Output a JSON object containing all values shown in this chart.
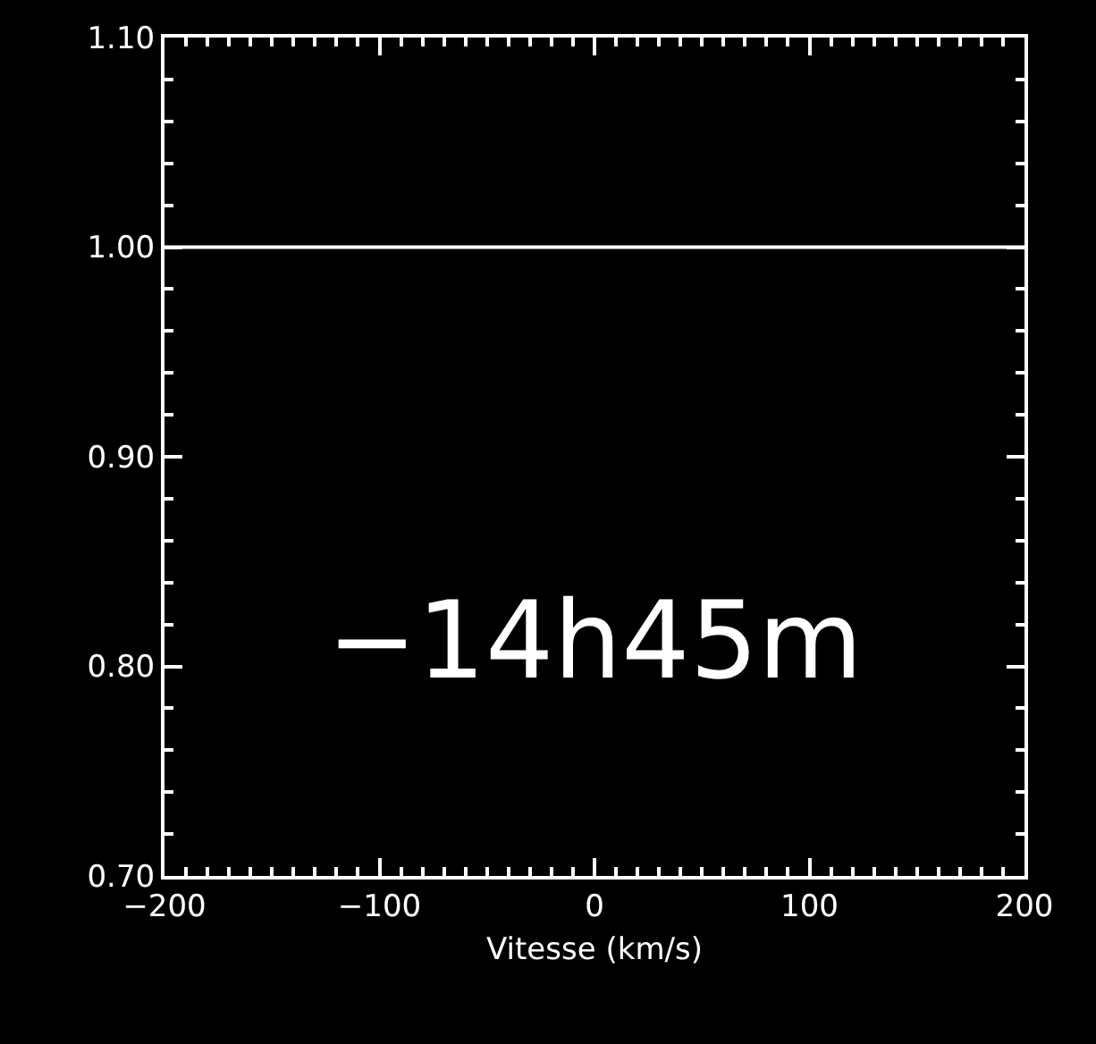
{
  "chart_data": {
    "type": "line",
    "xlabel": "Vitesse (km/s)",
    "x": [
      -200,
      200
    ],
    "series": [
      {
        "color": "#ffffff",
        "values": [
          1.0,
          1.0
        ]
      }
    ],
    "xlim": [
      -200,
      200
    ],
    "ylim": [
      0.7,
      1.1
    ],
    "xticks": [
      {
        "value": -200,
        "label": "−200"
      },
      {
        "value": -100,
        "label": "−100"
      },
      0,
      100,
      200
    ],
    "yticks": [
      {
        "value": 0.7,
        "label": "0.70"
      },
      {
        "value": 0.8,
        "label": "0.80"
      },
      {
        "value": 0.9,
        "label": "0.90"
      },
      {
        "value": 1.0,
        "label": "1.00"
      },
      {
        "value": 1.1,
        "label": "1.10"
      }
    ],
    "annotations": [
      "−14h45m"
    ],
    "grid": false,
    "line_style": "solid",
    "marker": "none"
  }
}
